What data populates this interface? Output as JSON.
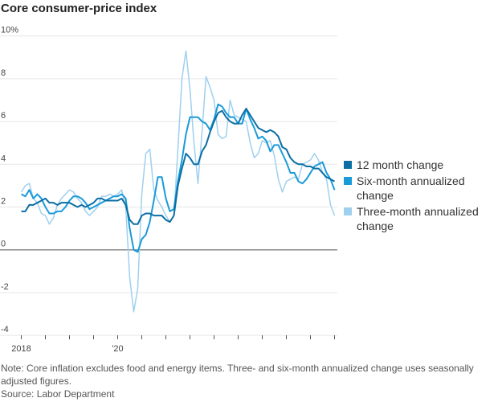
{
  "chart_data": {
    "type": "line",
    "title": "Core consumer-price index",
    "xlabel": "",
    "ylabel": "",
    "ylim": [
      -4,
      10
    ],
    "yticks": [
      "10%",
      "8",
      "6",
      "4",
      "2",
      "0",
      "-2",
      "-4"
    ],
    "ytick_values": [
      10,
      8,
      6,
      4,
      2,
      0,
      -2,
      -4
    ],
    "xtick_labels": [
      "2018",
      "'20"
    ],
    "x_start": "2018-01",
    "frequency": "monthly",
    "grid": true,
    "legend_position": "right",
    "series": [
      {
        "name": "12 month change",
        "color": "#0b6fa4",
        "values": [
          1.8,
          1.8,
          2.1,
          2.1,
          2.2,
          2.3,
          2.4,
          2.2,
          2.2,
          2.1,
          2.2,
          2.2,
          2.2,
          2.1,
          2.0,
          2.1,
          2.0,
          2.1,
          2.2,
          2.4,
          2.4,
          2.3,
          2.3,
          2.3,
          2.3,
          2.4,
          2.1,
          1.4,
          1.2,
          1.2,
          1.6,
          1.7,
          1.7,
          1.6,
          1.6,
          1.6,
          1.4,
          1.3,
          1.6,
          3.0,
          3.8,
          4.5,
          4.3,
          4.0,
          4.0,
          4.6,
          4.9,
          5.5,
          6.0,
          6.4,
          6.5,
          6.2,
          6.0,
          5.9,
          5.9,
          6.3,
          6.6,
          6.3,
          6.0,
          5.7,
          5.6,
          5.5,
          5.6,
          5.5,
          5.3,
          4.8,
          4.7,
          4.3,
          4.1,
          4.0,
          4.0,
          3.9,
          3.9,
          3.8,
          3.8,
          3.6,
          3.4,
          3.3,
          3.2
        ]
      },
      {
        "name": "Six-month annualized change",
        "color": "#1a9ad9",
        "values": [
          2.6,
          2.5,
          2.8,
          2.4,
          2.6,
          2.4,
          2.0,
          1.7,
          1.7,
          1.8,
          1.8,
          2.0,
          2.3,
          2.5,
          2.5,
          2.4,
          2.2,
          1.9,
          2.0,
          2.1,
          2.2,
          2.3,
          2.4,
          2.5,
          2.5,
          2.6,
          2.4,
          1.0,
          0.0,
          -0.1,
          0.5,
          0.7,
          1.3,
          2.3,
          3.4,
          3.4,
          2.4,
          1.8,
          1.9,
          3.2,
          4.2,
          5.4,
          6.2,
          6.2,
          6.2,
          6.0,
          5.9,
          5.6,
          6.1,
          6.8,
          6.7,
          6.4,
          6.2,
          6.2,
          5.9,
          5.9,
          6.6,
          6.1,
          5.7,
          5.2,
          5.3,
          5.1,
          4.6,
          4.9,
          4.9,
          4.5,
          4.1,
          3.6,
          3.6,
          3.2,
          3.1,
          3.3,
          3.6,
          3.9,
          4.0,
          4.1,
          3.6,
          3.3,
          2.8
        ]
      },
      {
        "name": "Three-month annualized change",
        "color": "#9fd0ef",
        "values": [
          2.7,
          3.0,
          3.1,
          2.4,
          2.2,
          1.7,
          1.6,
          1.2,
          1.5,
          2.1,
          2.4,
          2.6,
          2.8,
          2.7,
          2.4,
          2.2,
          1.8,
          1.6,
          1.8,
          2.0,
          2.5,
          2.5,
          2.6,
          2.5,
          2.6,
          2.8,
          2.0,
          -1.3,
          -2.9,
          -1.8,
          2.6,
          4.5,
          4.7,
          2.8,
          2.3,
          2.0,
          1.6,
          1.3,
          1.6,
          4.7,
          8.0,
          9.3,
          7.5,
          5.0,
          3.1,
          5.5,
          8.1,
          7.6,
          7.0,
          5.4,
          5.2,
          5.3,
          7.0,
          6.3,
          6.2,
          6.1,
          6.0,
          5.0,
          4.3,
          4.5,
          5.1,
          5.0,
          5.1,
          4.4,
          3.3,
          2.7,
          3.2,
          3.3,
          3.4,
          3.3,
          4.0,
          4.1,
          4.2,
          4.5,
          4.2,
          3.6,
          3.3,
          2.1,
          1.6
        ]
      }
    ]
  },
  "legend": [
    {
      "label": "12 month change",
      "color": "#0b6fa4"
    },
    {
      "label": "Six-month annualized change",
      "color": "#1a9ad9"
    },
    {
      "label": "Three-month annualized change",
      "color": "#9fd0ef"
    }
  ],
  "notes": {
    "note": "Note: Core inflation excludes food and energy items. Three- and six-month annualized change uses seasonally adjusted figures.",
    "source": "Source: Labor Department"
  }
}
